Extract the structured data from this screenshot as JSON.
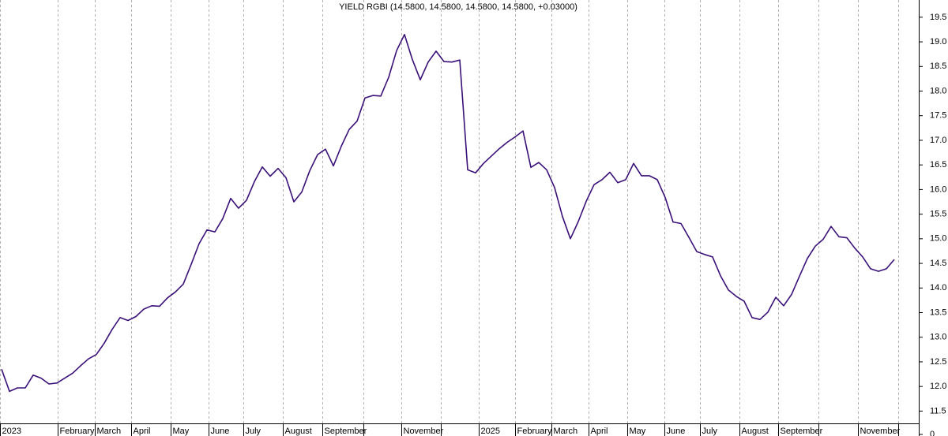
{
  "chart_data": [
    {
      "type": "line",
      "title": "YIELD RGBI (14.5800, 14.5800, 14.5800, 14.5800, +0.03000)",
      "color": "#3a1078",
      "values": [
        12.35,
        11.9,
        11.97,
        11.97,
        12.23,
        12.17,
        12.05,
        12.07,
        12.17,
        12.27,
        12.42,
        12.56,
        12.65,
        12.88,
        13.16,
        13.4,
        13.34,
        13.42,
        13.57,
        13.64,
        13.63,
        13.8,
        13.92,
        14.08,
        14.48,
        14.9,
        15.18,
        15.14,
        15.41,
        15.82,
        15.62,
        15.78,
        16.16,
        16.46,
        16.27,
        16.43,
        16.24,
        15.75,
        15.95,
        16.38,
        16.71,
        16.82,
        16.48,
        16.88,
        17.22,
        17.39,
        17.86,
        17.91,
        17.9,
        18.28,
        18.82,
        19.15,
        18.64,
        18.23,
        18.59,
        18.81,
        18.6,
        18.59,
        18.63,
        16.4,
        16.34,
        16.53,
        16.68,
        16.83,
        16.96,
        17.07,
        17.19,
        16.45,
        16.55,
        16.4,
        16.04,
        15.45,
        15.0,
        15.35,
        15.76,
        16.1,
        16.2,
        16.35,
        16.14,
        16.2,
        16.53,
        16.28,
        16.28,
        16.2,
        15.84,
        15.34,
        15.31,
        15.03,
        14.74,
        14.68,
        14.63,
        14.25,
        13.96,
        13.83,
        13.73,
        13.4,
        13.36,
        13.51,
        13.81,
        13.64,
        13.87,
        14.24,
        14.6,
        14.85,
        14.99,
        15.25,
        15.04,
        15.02,
        14.81,
        14.63,
        14.39,
        14.34,
        14.39,
        14.58
      ],
      "xlim": [
        -0.2,
        116.1
      ],
      "xticks": [
        {
          "value": -0.2,
          "label": "2023"
        },
        {
          "value": 7.1,
          "label": "February"
        },
        {
          "value": 11.8,
          "label": "March"
        },
        {
          "value": 16.4,
          "label": "April"
        },
        {
          "value": 21.4,
          "label": "May"
        },
        {
          "value": 26.2,
          "label": "June"
        },
        {
          "value": 30.6,
          "label": "July"
        },
        {
          "value": 35.6,
          "label": "August"
        },
        {
          "value": 40.6,
          "label": "September"
        },
        {
          "value": 45.8,
          "label": null
        },
        {
          "value": 50.6,
          "label": "November"
        },
        {
          "value": 55.6,
          "label": null
        },
        {
          "value": 60.4,
          "label": "2025"
        },
        {
          "value": 65,
          "label": "February"
        },
        {
          "value": 69.6,
          "label": "March"
        },
        {
          "value": 74.3,
          "label": "April"
        },
        {
          "value": 79.2,
          "label": "May"
        },
        {
          "value": 83.9,
          "label": "June"
        },
        {
          "value": 88.4,
          "label": "July"
        },
        {
          "value": 93.4,
          "label": "August"
        },
        {
          "value": 98.3,
          "label": "September"
        },
        {
          "value": 103.4,
          "label": null
        },
        {
          "value": 108.4,
          "label": "November"
        },
        {
          "value": 113.5,
          "label": null
        }
      ],
      "ylim": [
        11.25,
        19.85
      ],
      "yticks": [
        {
          "value": 11.5,
          "label": "11.5"
        },
        {
          "value": 12,
          "label": "12.0"
        },
        {
          "value": 12.5,
          "label": "12.5"
        },
        {
          "value": 13,
          "label": "13.0"
        },
        {
          "value": 13.5,
          "label": "13.5"
        },
        {
          "value": 14,
          "label": "14.0"
        },
        {
          "value": 14.5,
          "label": "14.5"
        },
        {
          "value": 15,
          "label": "15.0"
        },
        {
          "value": 15.5,
          "label": "15.5"
        },
        {
          "value": 16,
          "label": "16.0"
        },
        {
          "value": 16.5,
          "label": "16.5"
        },
        {
          "value": 17,
          "label": "17.0"
        },
        {
          "value": 17.5,
          "label": "17.5"
        },
        {
          "value": 18,
          "label": "18.0"
        },
        {
          "value": 18.5,
          "label": "18.5"
        },
        {
          "value": 19,
          "label": "19.0"
        },
        {
          "value": 19.5,
          "label": "19.5"
        }
      ],
      "grid": true
    },
    {
      "type": "volume",
      "yticks": [
        0
      ]
    }
  ]
}
